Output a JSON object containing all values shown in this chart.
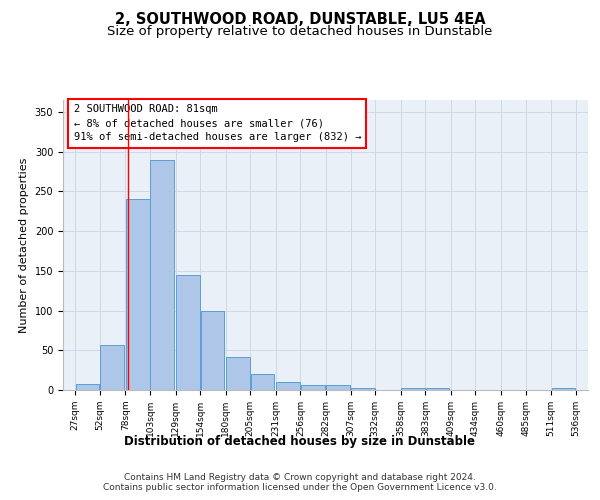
{
  "title_line1": "2, SOUTHWOOD ROAD, DUNSTABLE, LU5 4EA",
  "title_line2": "Size of property relative to detached houses in Dunstable",
  "xlabel": "Distribution of detached houses by size in Dunstable",
  "ylabel": "Number of detached properties",
  "bar_color": "#aec6e8",
  "bar_edge_color": "#5a9fd4",
  "bins": [
    27,
    52,
    78,
    103,
    129,
    154,
    180,
    205,
    231,
    256,
    282,
    307,
    332,
    358,
    383,
    409,
    434,
    460,
    485,
    511,
    536
  ],
  "bar_heights": [
    8,
    57,
    240,
    290,
    145,
    100,
    41,
    20,
    10,
    6,
    6,
    3,
    0,
    3,
    3,
    0,
    0,
    0,
    0,
    2
  ],
  "tick_labels": [
    "27sqm",
    "52sqm",
    "78sqm",
    "103sqm",
    "129sqm",
    "154sqm",
    "180sqm",
    "205sqm",
    "231sqm",
    "256sqm",
    "282sqm",
    "307sqm",
    "332sqm",
    "358sqm",
    "383sqm",
    "409sqm",
    "434sqm",
    "460sqm",
    "485sqm",
    "511sqm",
    "536sqm"
  ],
  "ylim": [
    0,
    365
  ],
  "yticks": [
    0,
    50,
    100,
    150,
    200,
    250,
    300,
    350
  ],
  "property_line_x": 81,
  "annotation_box_text": "2 SOUTHWOOD ROAD: 81sqm\n← 8% of detached houses are smaller (76)\n91% of semi-detached houses are larger (832) →",
  "grid_color": "#d0d8e8",
  "background_color": "#eaf0f8",
  "footer_line1": "Contains HM Land Registry data © Crown copyright and database right 2024.",
  "footer_line2": "Contains public sector information licensed under the Open Government Licence v3.0.",
  "title_fontsize": 10.5,
  "subtitle_fontsize": 9.5,
  "annotation_fontsize": 7.5,
  "ylabel_fontsize": 8,
  "xlabel_fontsize": 8.5,
  "footer_fontsize": 6.5,
  "tick_fontsize": 6.5
}
